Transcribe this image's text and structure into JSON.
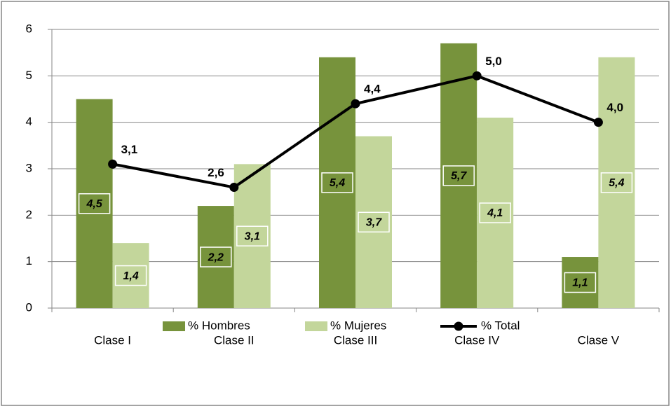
{
  "chart_data": {
    "type": "bar",
    "categories": [
      "Clase I",
      "Clase II",
      "Clase III",
      "Clase IV",
      "Clase V"
    ],
    "series": [
      {
        "name": "% Hombres",
        "type": "bar",
        "color": "#77933c",
        "values": [
          4.5,
          2.2,
          5.4,
          5.7,
          1.1
        ],
        "value_labels": [
          "4,5",
          "2,2",
          "5,4",
          "5,7",
          "1,1"
        ]
      },
      {
        "name": "% Mujeres",
        "type": "bar",
        "color": "#c3d69b",
        "values": [
          1.4,
          3.1,
          3.7,
          4.1,
          5.4
        ],
        "value_labels": [
          "1,4",
          "3,1",
          "3,7",
          "4,1",
          "5,4"
        ]
      },
      {
        "name": "% Total",
        "type": "line",
        "color": "#000000",
        "values": [
          3.1,
          2.6,
          4.4,
          5.0,
          4.0
        ],
        "value_labels": [
          "3,1",
          "2,6",
          "4,4",
          "5,0",
          "4,0"
        ]
      }
    ],
    "ylim": [
      0,
      6
    ],
    "yticks": [
      0,
      1,
      2,
      3,
      4,
      5,
      6
    ],
    "grid": true,
    "legend": "bottom"
  }
}
